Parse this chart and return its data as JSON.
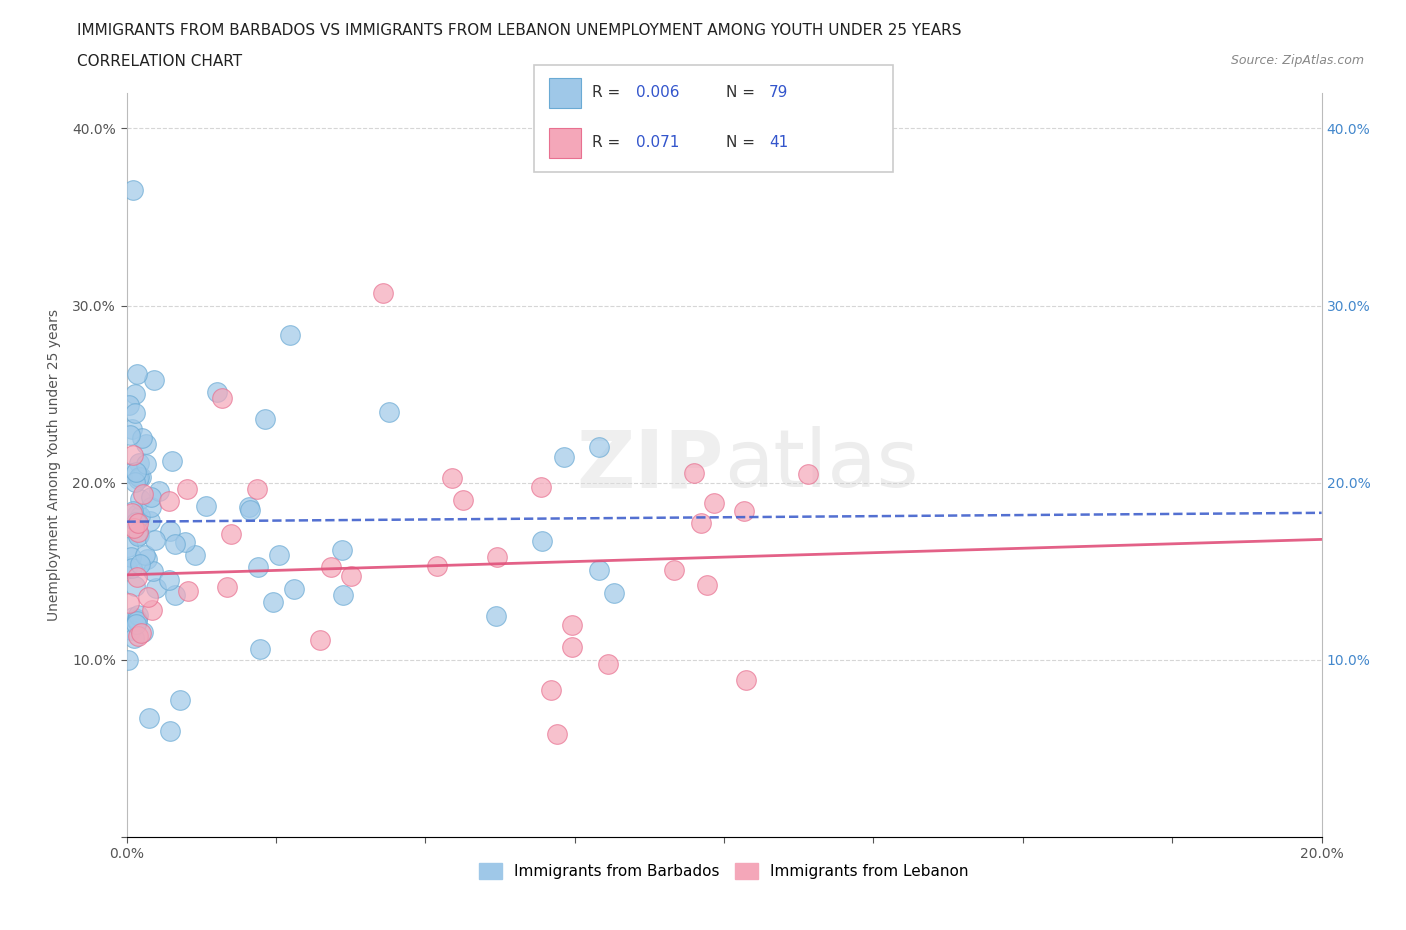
{
  "title_line1": "IMMIGRANTS FROM BARBADOS VS IMMIGRANTS FROM LEBANON UNEMPLOYMENT AMONG YOUTH UNDER 25 YEARS",
  "title_line2": "CORRELATION CHART",
  "source": "Source: ZipAtlas.com",
  "ylabel": "Unemployment Among Youth under 25 years",
  "watermark_zip": "ZIP",
  "watermark_atlas": "atlas",
  "xlim": [
    0.0,
    0.2
  ],
  "ylim": [
    0.0,
    0.42
  ],
  "xticks": [
    0.0,
    0.025,
    0.05,
    0.075,
    0.1,
    0.125,
    0.15,
    0.175,
    0.2
  ],
  "xticklabels_show": {
    "0.0": "0.0%",
    "0.20": "20.0%"
  },
  "yticks": [
    0.0,
    0.1,
    0.2,
    0.3,
    0.4
  ],
  "yticklabels": [
    "",
    "10.0%",
    "20.0%",
    "30.0%",
    "40.0%"
  ],
  "barbados_color": "#9FC8E8",
  "lebanon_color": "#F4A7B9",
  "barbados_edge_color": "#6AAAD4",
  "lebanon_edge_color": "#E87090",
  "barbados_trend_color": "#4060CC",
  "lebanon_trend_color": "#E0507A",
  "grid_color": "#CCCCCC",
  "R_barbados": "0.006",
  "N_barbados": "79",
  "R_lebanon": "0.071",
  "N_lebanon": "41",
  "legend_label_1": "Immigrants from Barbados",
  "legend_label_2": "Immigrants from Lebanon",
  "title_fontsize": 11,
  "source_fontsize": 9,
  "tick_fontsize": 10,
  "ylabel_fontsize": 10,
  "legend_fontsize": 11,
  "barbados_trend_start_y": 0.178,
  "barbados_trend_end_y": 0.183,
  "lebanon_trend_start_y": 0.148,
  "lebanon_trend_end_y": 0.168
}
